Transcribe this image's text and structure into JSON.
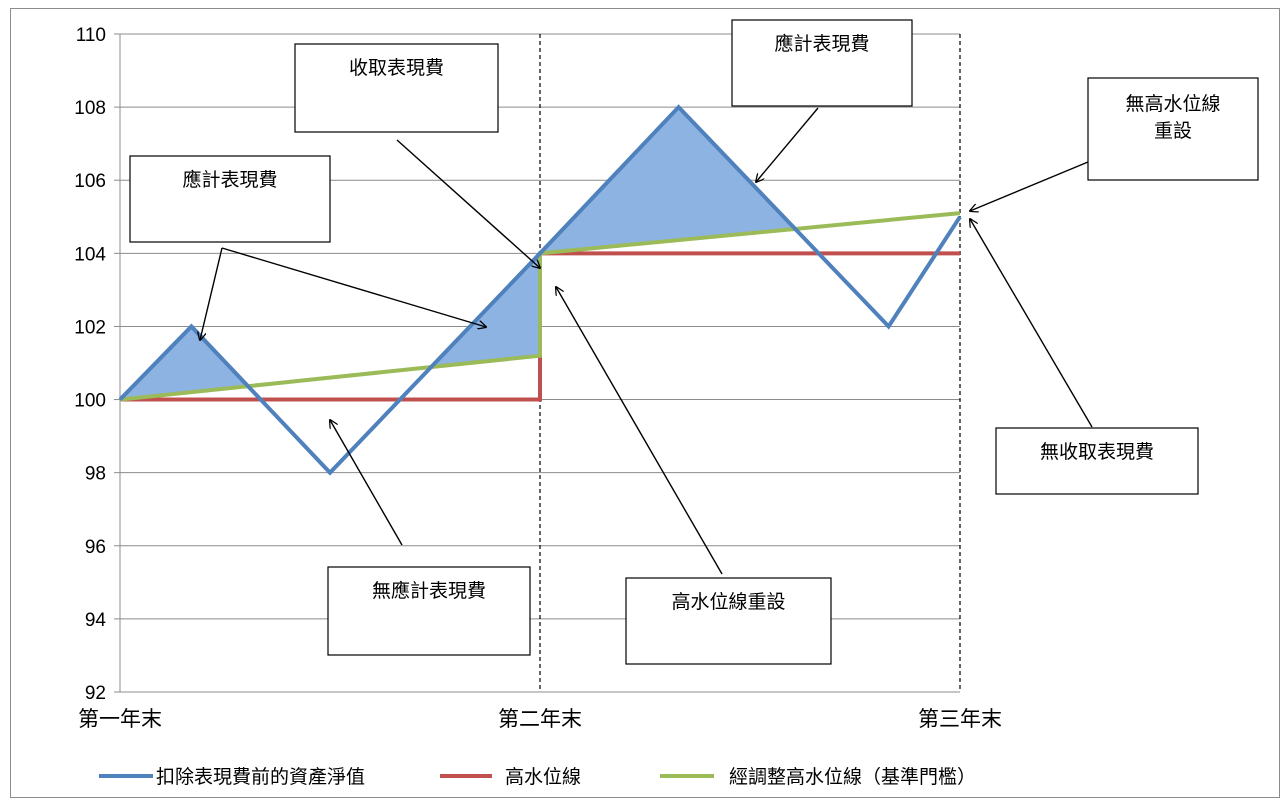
{
  "chart_data": {
    "type": "line",
    "ylim": [
      92,
      110
    ],
    "ytick_step": 2,
    "y_ticks": [
      "92",
      "94",
      "96",
      "98",
      "100",
      "102",
      "104",
      "106",
      "108",
      "110"
    ],
    "x_range": [
      0,
      2
    ],
    "categories": [
      "第一年末",
      "第二年末",
      "第三年末"
    ],
    "grid": "horizontal",
    "legend_position": "bottom",
    "series": [
      {
        "name": "扣除表現費前的資產淨值",
        "color": "#4f81bd",
        "x": [
          0,
          0.17,
          0.5,
          1.0,
          1.33,
          1.83,
          2.0
        ],
        "y": [
          100,
          102,
          98,
          104,
          108,
          102,
          105
        ]
      },
      {
        "name": "高水位線",
        "color": "#c0504d",
        "x": [
          0,
          1.0,
          1.0,
          2.0
        ],
        "y": [
          100,
          100,
          104,
          104
        ]
      },
      {
        "name": "經調整高水位線（基準門檻）",
        "color": "#9bbb59",
        "x": [
          0,
          1.0,
          1.0,
          2.0
        ],
        "y": [
          100,
          101.2,
          104,
          105.1
        ]
      }
    ],
    "shaded_regions_color": "#8db3e2",
    "vertical_dashed_lines_at": [
      1.0,
      2.0
    ],
    "annotations": [
      {
        "id": "fee-accrued-1",
        "text": "應計表現費"
      },
      {
        "id": "fee-collected",
        "text": "收取表現費"
      },
      {
        "id": "fee-accrued-2",
        "text": "應計表現費"
      },
      {
        "id": "hwm-no-reset",
        "text": "無高水位線重設",
        "lines": [
          "無高水位線",
          "重設"
        ]
      },
      {
        "id": "no-fee-accrued",
        "text": "無應計表現費"
      },
      {
        "id": "hwm-reset",
        "text": "高水位線重設"
      },
      {
        "id": "no-fee-collected",
        "text": "無收取表現費"
      }
    ]
  }
}
